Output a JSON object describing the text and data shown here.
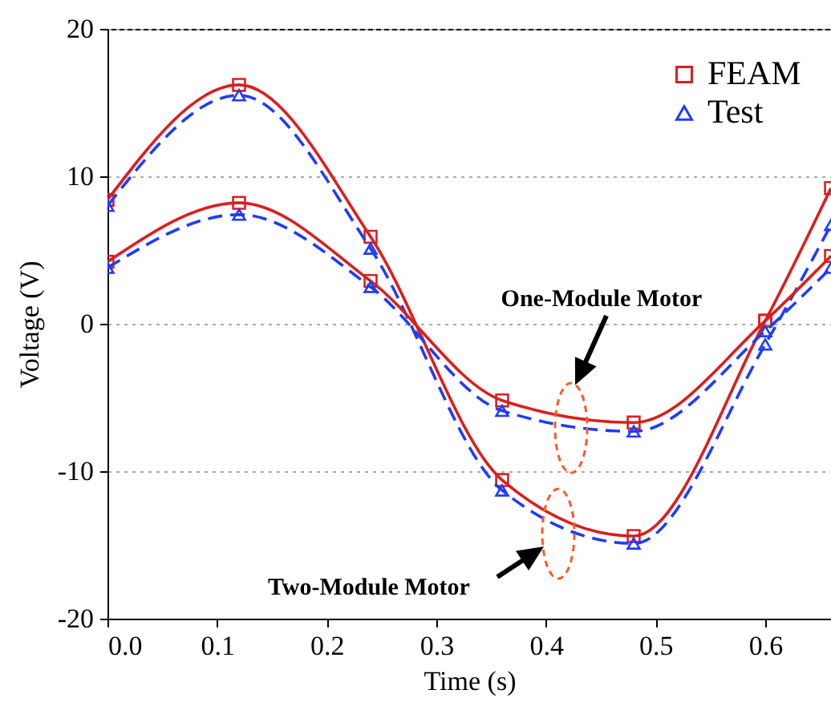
{
  "chart_data": {
    "type": "line",
    "xlabel": "Time (s)",
    "ylabel": "Voltage (V)",
    "xlim": [
      0,
      0.66
    ],
    "ylim": [
      -20,
      20
    ],
    "xticks": [
      {
        "value": 0,
        "label": "0.0"
      },
      0.1,
      0.2,
      0.3,
      0.4,
      0.5,
      0.6
    ],
    "yticks": [
      -20,
      -10,
      0,
      10,
      20
    ],
    "grid": "y",
    "legend": "top right",
    "x": [
      0,
      0.12,
      0.24,
      0.36,
      0.48,
      0.6,
      0.66
    ],
    "series": [
      {
        "name": "FEAM",
        "color": "#dc1e1e",
        "marker": "square",
        "line_style": "solid",
        "values": [
          8.4,
          16.2,
          5.9,
          -10.6,
          -14.4,
          0.2,
          9.2
        ]
      },
      {
        "name": "Test",
        "color": "#1e3cff",
        "marker": "triangle",
        "line_style": "dashed",
        "values": [
          8.0,
          15.5,
          5.1,
          -11.3,
          -14.9,
          -1.4,
          6.7
        ]
      },
      {
        "color": "#dc1e1e",
        "marker": "square",
        "line_style": "solid",
        "values": [
          4.2,
          8.2,
          2.9,
          -5.2,
          -6.7,
          0.2,
          4.6
        ]
      },
      {
        "color": "#1e3cff",
        "marker": "triangle",
        "line_style": "dashed",
        "values": [
          3.8,
          7.4,
          2.5,
          -5.9,
          -7.3,
          -0.5,
          3.8
        ]
      }
    ],
    "annotations": [
      "One-Module Motor",
      "Two-Module Motor"
    ]
  }
}
